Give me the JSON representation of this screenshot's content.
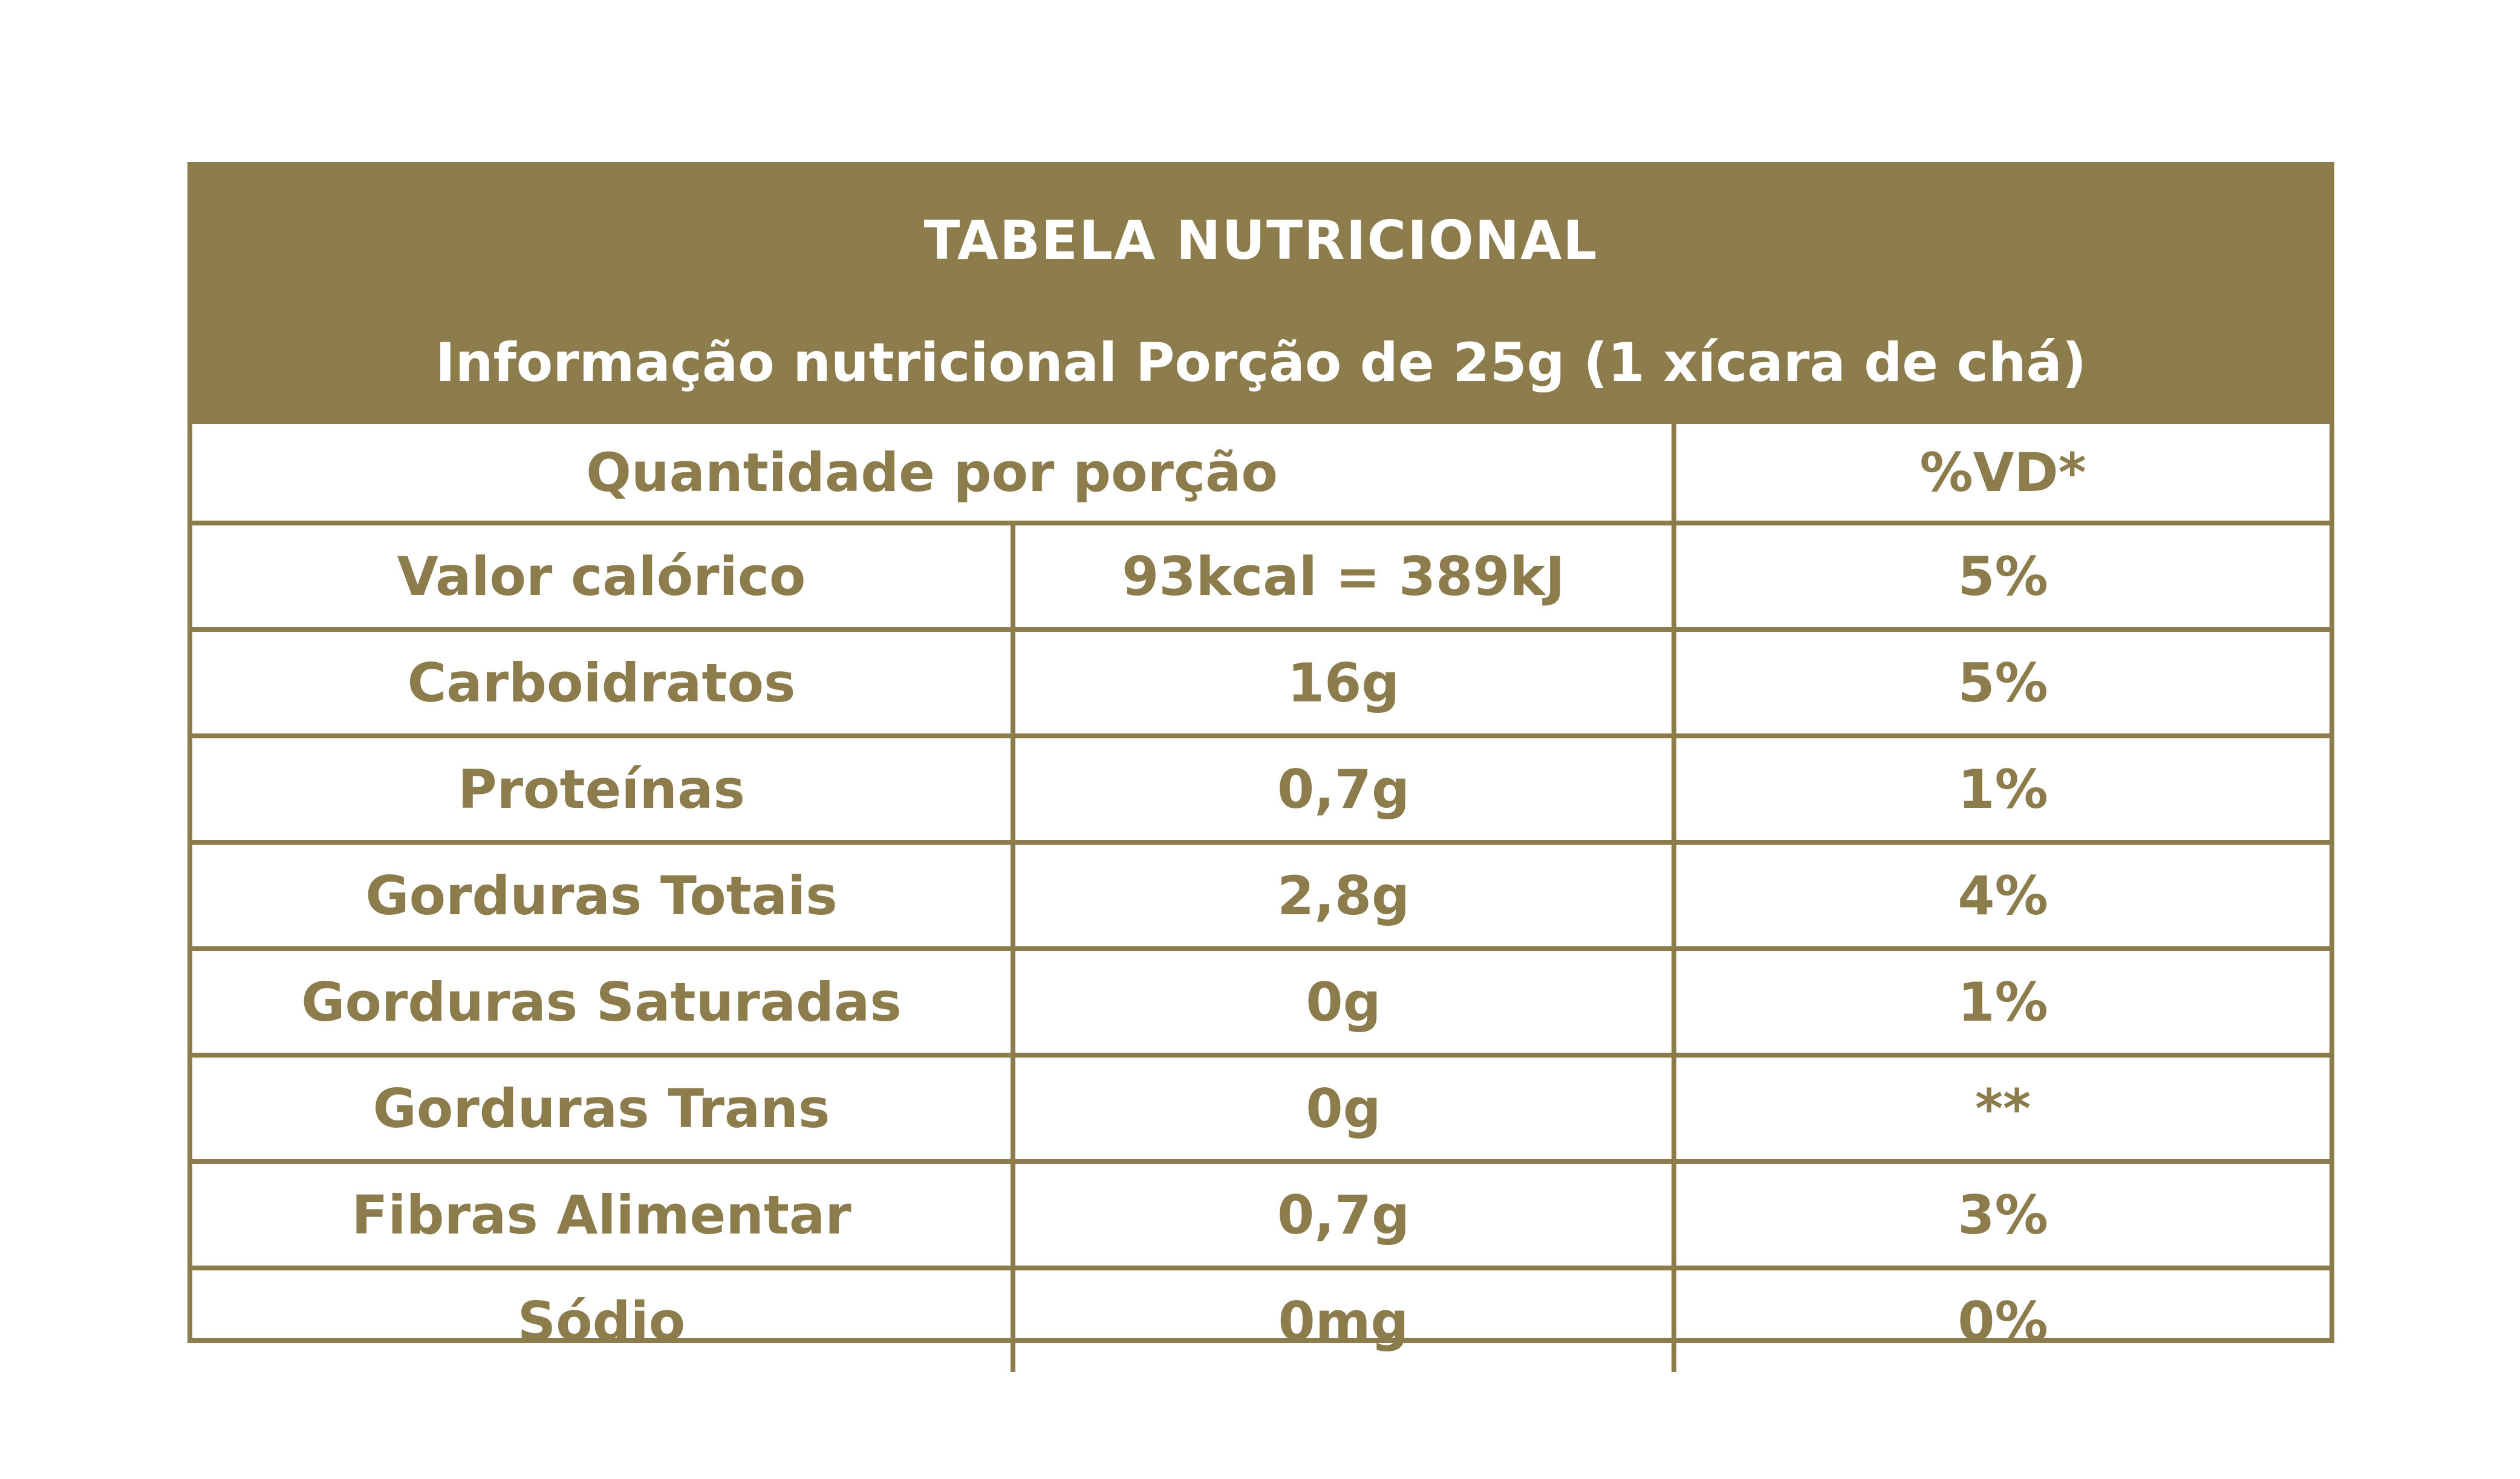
{
  "colors": {
    "accent": "#8c7b4b",
    "background": "#ffffff",
    "header_text": "#ffffff"
  },
  "header": {
    "title": "TABELA NUTRICIONAL",
    "subtitle": "Informação nutricional Porção de 25g (1 xícara de chá)"
  },
  "columns": {
    "quantity": "Quantidade por porção",
    "dv": "%VD*"
  },
  "rows": [
    {
      "name": "Valor calórico",
      "amount": "93kcal = 389kJ",
      "dv": "5%"
    },
    {
      "name": "Carboidratos",
      "amount": "16g",
      "dv": "5%"
    },
    {
      "name": "Proteínas",
      "amount": "0,7g",
      "dv": "1%"
    },
    {
      "name": "Gorduras Totais",
      "amount": "2,8g",
      "dv": "4%"
    },
    {
      "name": "Gorduras Saturadas",
      "amount": "0g",
      "dv": "1%"
    },
    {
      "name": "Gorduras Trans",
      "amount": "0g",
      "dv": "**"
    },
    {
      "name": "Fibras Alimentar",
      "amount": "0,7g",
      "dv": "3%"
    },
    {
      "name": "Sódio",
      "amount": "0mg",
      "dv": "0%"
    }
  ]
}
